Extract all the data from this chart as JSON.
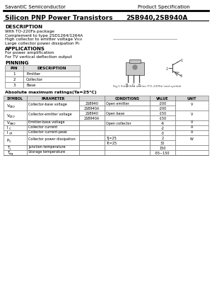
{
  "company": "SavantIC Semiconductor",
  "spec_label": "Product Specification",
  "title": "Silicon PNP Power Transistors",
  "part_number": "2SB940,2SB940A",
  "description_title": "DESCRIPTION",
  "description_lines": [
    "With TO-220Fa package",
    "Complement to type 2SD1264/1264A",
    "High collector to emitter voltage V₀₀₀",
    "Large collector power dissipation P₀"
  ],
  "applications_title": "APPLICATIONS",
  "applications_lines": [
    "For power amplification",
    "For TV vertical deflection output"
  ],
  "pinning_title": "PINNING",
  "pin_headers": [
    "PIN",
    "DESCRIPTION"
  ],
  "pin_rows": [
    [
      "1",
      "Emitter"
    ],
    [
      "2",
      "Collector"
    ],
    [
      "3",
      "Base"
    ]
  ],
  "fig_caption": "Fig.1 Simplified outline (TO-220Fa) and symbol",
  "abs_max_title": "Absolute maximum ratings(Ta=25°C)",
  "abs_rows": [
    {
      "symbol_text": "VCBO",
      "parameter": "Collector-base voltage",
      "subs": [
        "2SB940",
        "2SB940A"
      ],
      "conditions": [
        "Open emitter",
        ""
      ],
      "values": [
        "-200",
        "-200"
      ],
      "unit": "V",
      "nrows": 2
    },
    {
      "symbol_text": "VCEO",
      "parameter": "Collector-emitter voltage",
      "subs": [
        "2SB940",
        "2SB940A"
      ],
      "conditions": [
        "Open base",
        ""
      ],
      "values": [
        "-150",
        "-150"
      ],
      "unit": "V",
      "nrows": 2
    },
    {
      "symbol_text": "VEBO",
      "parameter": "Emitter-base voltage",
      "subs": [],
      "conditions": [
        "Open collector"
      ],
      "values": [
        "-6"
      ],
      "unit": "V",
      "nrows": 1
    },
    {
      "symbol_text": "IC",
      "parameter": "Collector current",
      "subs": [],
      "conditions": [
        ""
      ],
      "values": [
        "-2"
      ],
      "unit": "A",
      "nrows": 1
    },
    {
      "symbol_text": "ICP",
      "parameter": "Collector current-peak",
      "subs": [],
      "conditions": [
        ""
      ],
      "values": [
        "-3"
      ],
      "unit": "A",
      "nrows": 1
    },
    {
      "symbol_text": "PC",
      "parameter": "Collector power dissipation",
      "subs": [],
      "conditions": [
        "Tj=25",
        "Tc=25"
      ],
      "values": [
        "2",
        "30"
      ],
      "unit": "W",
      "nrows": 2
    },
    {
      "symbol_text": "TJ",
      "parameter": "Junction temperature",
      "subs": [],
      "conditions": [
        ""
      ],
      "values": [
        "150"
      ],
      "unit": "",
      "nrows": 1
    },
    {
      "symbol_text": "TSTG",
      "parameter": "Storage temperature",
      "subs": [],
      "conditions": [
        ""
      ],
      "values": [
        "-55~150"
      ],
      "unit": "",
      "nrows": 1
    }
  ],
  "bg_color": "#ffffff",
  "symbol_map": {
    "VCBO": "VCBO",
    "VCEO": "VCEO",
    "VEBO": "VEBO",
    "IC": "IC",
    "ICP": "ICP",
    "PC": "PC",
    "TJ": "Tj",
    "TSTG": "Tstg"
  },
  "symbol_sub_map": {
    "VCBO": [
      "V",
      "CBO"
    ],
    "VCEO": [
      "V",
      "CEO"
    ],
    "VEBO": [
      "V",
      "EBO"
    ],
    "IC": [
      "I",
      "C"
    ],
    "ICP": [
      "I",
      "CP"
    ],
    "PC": [
      "P",
      "C"
    ],
    "TJ": [
      "T",
      "j"
    ],
    "TSTG": [
      "T",
      "stg"
    ]
  }
}
